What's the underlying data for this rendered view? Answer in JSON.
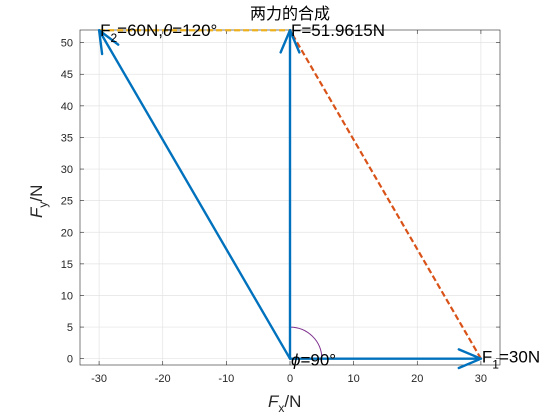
{
  "chart_data": {
    "type": "line",
    "title": "两力的合成",
    "xlabel": {
      "main": "F",
      "sub": "x",
      "unit": "/N"
    },
    "ylabel": {
      "main": "F",
      "sub": "y",
      "unit": "/N"
    },
    "xlim": [
      -33,
      33
    ],
    "ylim": [
      -1,
      52
    ],
    "xticks": [
      -30,
      -20,
      -10,
      0,
      10,
      20,
      30
    ],
    "yticks": [
      0,
      5,
      10,
      15,
      20,
      25,
      30,
      35,
      40,
      45,
      50
    ],
    "grid": true,
    "colors": {
      "vector": "#0072BD",
      "dashed_f1": "#D95319",
      "dashed_f2": "#EDB120",
      "arc": "#7E2F8E"
    },
    "vectors": [
      {
        "name": "F1",
        "x0": 0,
        "y0": 0,
        "x1": 30,
        "y1": 0
      },
      {
        "name": "F2",
        "x0": 0,
        "y0": 0,
        "x1": -30,
        "y1": 51.9615
      },
      {
        "name": "F",
        "x0": 0,
        "y0": 0,
        "x1": 0,
        "y1": 51.9615
      }
    ],
    "dashed_lines": [
      {
        "from": [
          30,
          0
        ],
        "to": [
          0,
          51.9615
        ],
        "color": "dashed_f1"
      },
      {
        "from": [
          -30,
          51.9615
        ],
        "to": [
          0,
          51.9615
        ],
        "color": "dashed_f2"
      }
    ],
    "angle_arc": {
      "center": [
        0,
        0
      ],
      "radius": 5,
      "from_deg": 0,
      "to_deg": 90
    },
    "annotations": {
      "f1": {
        "main": "F",
        "sub": "1",
        "rest": "=30N",
        "x": 30,
        "y": 0
      },
      "f2": {
        "main": "F",
        "sub": "2",
        "rest": "=60N,",
        "theta_sym": "θ",
        "theta_rest": "=120°",
        "x": -30,
        "y": 51.9615
      },
      "f": {
        "text": "F=51.9615N",
        "x": 0,
        "y": 51.9615
      },
      "phi": {
        "sym": "ϕ",
        "rest": "=90°",
        "x": 0,
        "y": 0
      }
    }
  }
}
